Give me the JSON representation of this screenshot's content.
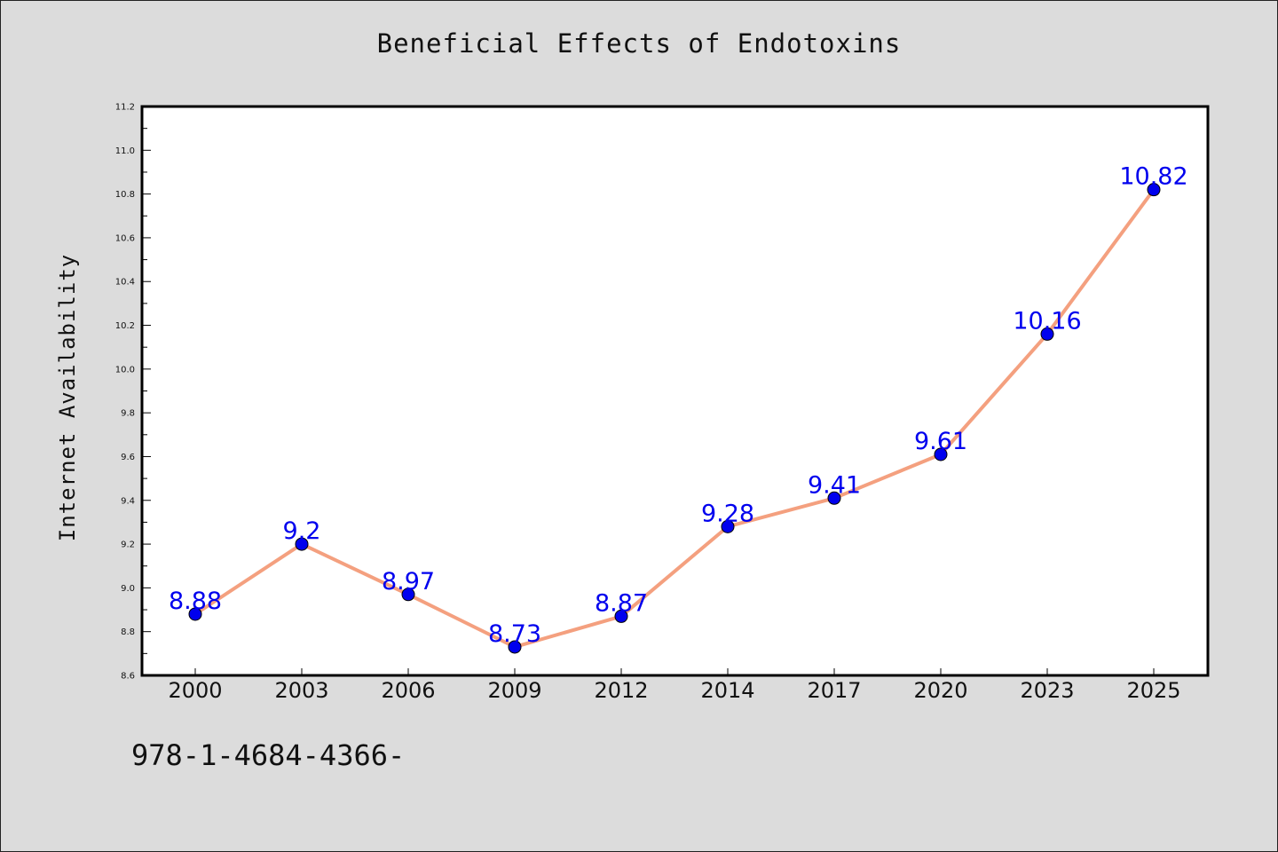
{
  "chart_data": {
    "type": "line",
    "title": "Beneficial Effects of Endotoxins",
    "xlabel": "",
    "ylabel": "Internet Availability",
    "categories": [
      "2000",
      "2003",
      "2006",
      "2009",
      "2012",
      "2014",
      "2017",
      "2020",
      "2023",
      "2025"
    ],
    "series": [
      {
        "values": [
          8.88,
          9.2,
          8.97,
          8.73,
          8.87,
          9.28,
          9.41,
          9.61,
          10.16,
          10.82
        ]
      }
    ],
    "data_labels": [
      "8.88",
      "9.2",
      "8.97",
      "8.73",
      "8.87",
      "9.28",
      "9.41",
      "9.61",
      "10.16",
      "10.82"
    ],
    "ylim": [
      8.6,
      11.2
    ],
    "yticks": [
      "8.6",
      "8.8",
      "9.0",
      "9.2",
      "9.4",
      "9.6",
      "9.8",
      "10.0",
      "10.2",
      "10.4",
      "10.6",
      "10.8",
      "11.0",
      "11.2"
    ],
    "grid": false,
    "line_color": "#f4a07f",
    "marker_color": "#0000ee",
    "label_color": "#0000ee",
    "plot_background": "#ffffff",
    "page_background": "#dcdcdc"
  },
  "footer_text": "978-1-4684-4366-"
}
